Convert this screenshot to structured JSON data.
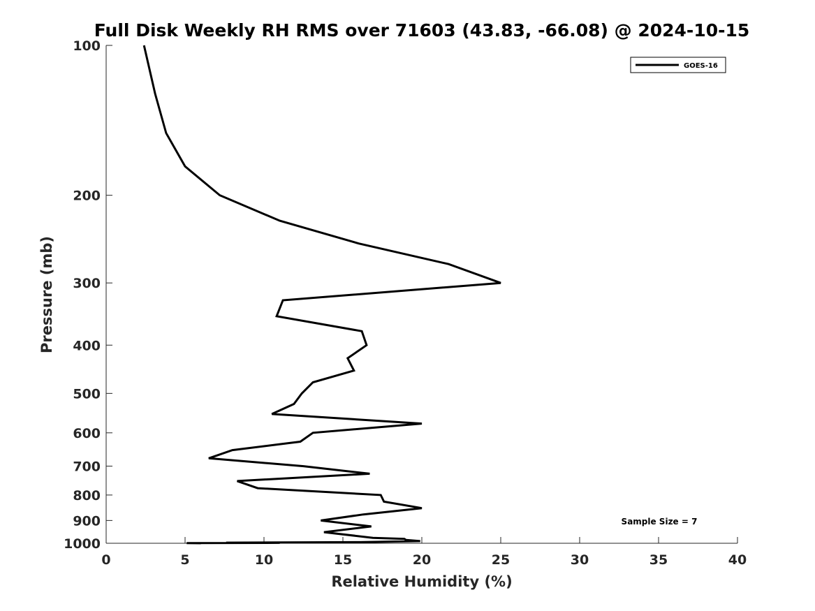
{
  "chart_data": {
    "type": "line",
    "title": "Full Disk Weekly RH RMS over 71603 (43.83, -66.08) @ 2024-10-15",
    "xlabel": "Relative Humidity (%)",
    "ylabel": "Pressure (mb)",
    "xlim": [
      0,
      40
    ],
    "ylim": [
      100,
      1000
    ],
    "y_scale": "log",
    "y_reversed": true,
    "x_ticks": [
      "0",
      "5",
      "10",
      "15",
      "20",
      "25",
      "30",
      "35",
      "40"
    ],
    "y_ticks": [
      "100",
      "200",
      "300",
      "400",
      "500",
      "600",
      "700",
      "800",
      "900",
      "1000"
    ],
    "grid": false,
    "legend_position": "top-right",
    "annotation": "Sample Size = 7",
    "series": [
      {
        "name": "GOES-16",
        "color": "#000000",
        "points": [
          [
            2.4,
            100
          ],
          [
            3.1,
            125
          ],
          [
            3.8,
            150
          ],
          [
            5.0,
            175
          ],
          [
            7.2,
            200
          ],
          [
            11.0,
            225
          ],
          [
            16.0,
            250
          ],
          [
            21.7,
            275
          ],
          [
            25.0,
            300
          ],
          [
            11.2,
            325
          ],
          [
            10.8,
            350
          ],
          [
            16.2,
            375
          ],
          [
            16.5,
            400
          ],
          [
            15.3,
            425
          ],
          [
            15.7,
            450
          ],
          [
            13.1,
            475
          ],
          [
            12.4,
            500
          ],
          [
            11.9,
            525
          ],
          [
            10.5,
            550
          ],
          [
            20.0,
            575
          ],
          [
            13.1,
            600
          ],
          [
            12.3,
            625
          ],
          [
            8.0,
            650
          ],
          [
            6.5,
            675
          ],
          [
            12.5,
            700
          ],
          [
            16.7,
            725
          ],
          [
            8.3,
            750
          ],
          [
            9.6,
            775
          ],
          [
            17.4,
            800
          ],
          [
            17.6,
            825
          ],
          [
            20.0,
            850
          ],
          [
            16.3,
            875
          ],
          [
            13.6,
            900
          ],
          [
            16.8,
            925
          ],
          [
            13.8,
            950
          ],
          [
            16.9,
            975
          ],
          [
            18.9,
            980
          ],
          [
            19.0,
            985
          ],
          [
            19.9,
            990
          ],
          [
            16.1,
            995
          ],
          [
            7.6,
            997
          ],
          [
            11.0,
            998
          ],
          [
            5.1,
            999
          ],
          [
            6.0,
            1000
          ]
        ]
      }
    ]
  }
}
